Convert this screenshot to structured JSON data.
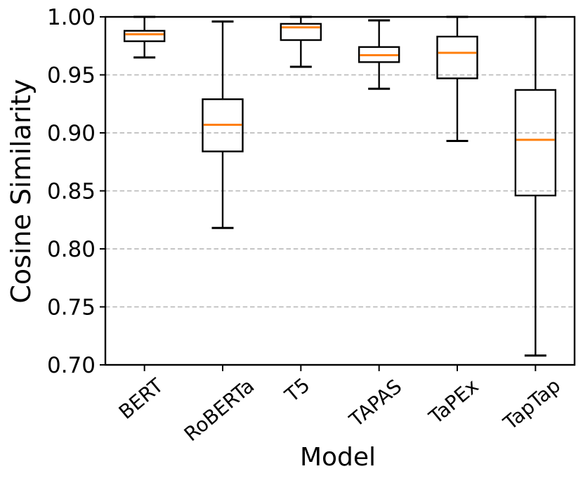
{
  "chart_data": {
    "type": "boxplot",
    "title": "",
    "xlabel": "Model",
    "ylabel": "Cosine Similarity",
    "categories": [
      "BERT",
      "RoBERTa",
      "T5",
      "TAPAS",
      "TaPEx",
      "TapTap"
    ],
    "boxes": [
      {
        "label": "BERT",
        "whisker_low": 0.965,
        "q1": 0.979,
        "median": 0.985,
        "q3": 0.988,
        "whisker_high": 1.0
      },
      {
        "label": "RoBERTa",
        "whisker_low": 0.818,
        "q1": 0.884,
        "median": 0.907,
        "q3": 0.929,
        "whisker_high": 0.996
      },
      {
        "label": "T5",
        "whisker_low": 0.957,
        "q1": 0.98,
        "median": 0.991,
        "q3": 0.994,
        "whisker_high": 1.0
      },
      {
        "label": "TAPAS",
        "whisker_low": 0.938,
        "q1": 0.961,
        "median": 0.967,
        "q3": 0.974,
        "whisker_high": 0.997
      },
      {
        "label": "TaPEx",
        "whisker_low": 0.893,
        "q1": 0.947,
        "median": 0.969,
        "q3": 0.983,
        "whisker_high": 1.0
      },
      {
        "label": "TapTap",
        "whisker_low": 0.708,
        "q1": 0.846,
        "median": 0.894,
        "q3": 0.937,
        "whisker_high": 1.0
      }
    ],
    "ylim": [
      0.7,
      1.0
    ],
    "yticks": [
      "0.70",
      "0.75",
      "0.80",
      "0.85",
      "0.90",
      "0.95",
      "1.00"
    ],
    "grid": "horizontal-dashed-interior-ticks-only",
    "legend": "none",
    "colors": {
      "median": "#ff7f0e",
      "box_edge": "#000000",
      "whisker": "#000000",
      "grid": "#bdbdbd",
      "axis": "#000000",
      "background": "#ffffff"
    }
  }
}
